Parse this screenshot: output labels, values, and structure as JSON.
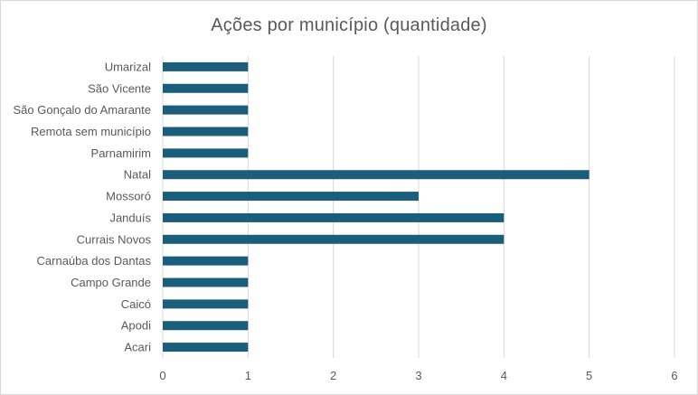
{
  "chart_data": {
    "type": "bar",
    "orientation": "horizontal",
    "title": "Ações por município (quantidade)",
    "categories": [
      "Acari",
      "Apodi",
      "Caicó",
      "Campo Grande",
      "Carnaúba dos Dantas",
      "Currais Novos",
      "Janduís",
      "Mossoró",
      "Natal",
      "Parnamirim",
      "Remota sem município",
      "São Gonçalo do Amarante",
      "São Vicente",
      "Umarizal"
    ],
    "values": [
      1,
      1,
      1,
      1,
      1,
      4,
      4,
      3,
      5,
      1,
      1,
      1,
      1,
      1
    ],
    "xlim": [
      0,
      6
    ],
    "xticks": [
      "0",
      "1",
      "2",
      "3",
      "4",
      "5",
      "6"
    ],
    "grid": true,
    "legend": "none",
    "colors": {
      "bar": "#1b5e7b",
      "grid": "#d9d9d9",
      "text": "#595959"
    }
  }
}
